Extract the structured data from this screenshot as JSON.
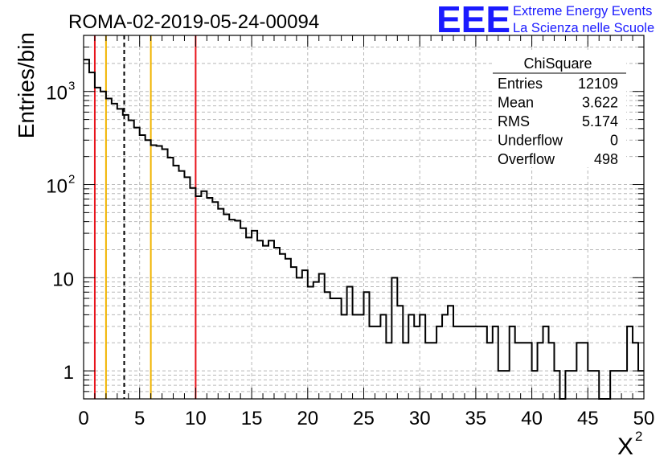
{
  "chart_data": {
    "type": "histogram",
    "title": "ROMA-02-2019-05-24-00094",
    "xlabel": "X",
    "xlabel_superscript": "2",
    "ylabel": "Entries/bin",
    "xlim": [
      0,
      50
    ],
    "ylim": [
      0.5,
      4000
    ],
    "y_log_scale": true,
    "grid": true,
    "x_ticks": [
      0,
      5,
      10,
      15,
      20,
      25,
      30,
      35,
      40,
      45,
      50
    ],
    "x_tick_labels": [
      "0",
      "5",
      "10",
      "15",
      "20",
      "25",
      "30",
      "35",
      "40",
      "45",
      "50"
    ],
    "y_tick_labels": [
      {
        "value": 1,
        "base": "1",
        "exp": ""
      },
      {
        "value": 10,
        "base": "10",
        "exp": ""
      },
      {
        "value": 100,
        "base": "10",
        "exp": "2"
      },
      {
        "value": 1000,
        "base": "10",
        "exp": "3"
      }
    ],
    "bin_width": 0.5,
    "bin_start": 0,
    "values": [
      2200,
      1600,
      1100,
      1000,
      840,
      740,
      650,
      560,
      490,
      410,
      340,
      300,
      265,
      260,
      240,
      195,
      160,
      140,
      120,
      92,
      75,
      85,
      72,
      65,
      55,
      48,
      42,
      41,
      34,
      27,
      32,
      25,
      22,
      25,
      21,
      18,
      16,
      13,
      10,
      12,
      8,
      9,
      11,
      7,
      6,
      6,
      4,
      8,
      4,
      4,
      7,
      3,
      3,
      4,
      2,
      10,
      5,
      2,
      4,
      3,
      4,
      2,
      2,
      3,
      4,
      5,
      3,
      3,
      3,
      3,
      3,
      3,
      2,
      3,
      1,
      1,
      3,
      2,
      2,
      2,
      1,
      2,
      3,
      2,
      1,
      0.3,
      1,
      1,
      2,
      2,
      1,
      1,
      0.3,
      0.3,
      1,
      1,
      1,
      3,
      2,
      1
    ],
    "vertical_lines": [
      {
        "x": 1.0,
        "color": "#e8141c",
        "style": "solid"
      },
      {
        "x": 2.0,
        "color": "#f0b400",
        "style": "solid"
      },
      {
        "x": 3.622,
        "color": "#000000",
        "style": "dashed"
      },
      {
        "x": 6.0,
        "color": "#f0b400",
        "style": "solid"
      },
      {
        "x": 10.0,
        "color": "#e8141c",
        "style": "solid"
      }
    ],
    "stats_box": {
      "title": "ChiSquare",
      "rows": [
        {
          "label": "Entries",
          "value": "12109"
        },
        {
          "label": "Mean",
          "value": "3.622"
        },
        {
          "label": "RMS",
          "value": "5.174"
        },
        {
          "label": "Underflow",
          "value": "0"
        },
        {
          "label": "Overflow",
          "value": "498"
        }
      ]
    }
  },
  "logo": {
    "mark": "EEE",
    "line1": "Extreme Energy Events",
    "line2": "La Scienza nelle Scuole",
    "color": "#1a1aff"
  }
}
